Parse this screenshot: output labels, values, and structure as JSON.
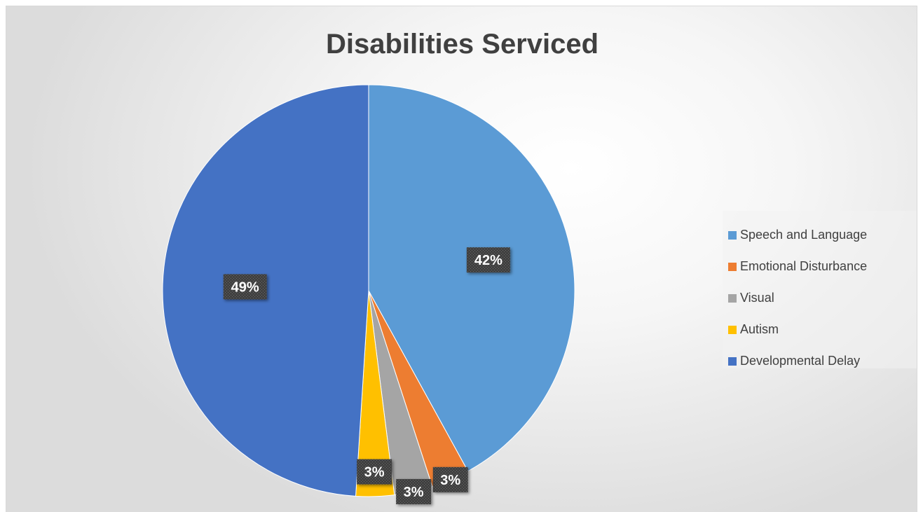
{
  "chart_data": {
    "type": "pie",
    "title": "Disabilities Serviced",
    "categories": [
      "Speech and Language",
      "Emotional Disturbance",
      "Visual",
      "Autism",
      "Developmental Delay"
    ],
    "values": [
      42,
      3,
      3,
      3,
      49
    ],
    "data_labels": [
      "42%",
      "3%",
      "3%",
      "3%",
      "49%"
    ],
    "colors": [
      "#5B9BD5",
      "#ED7D31",
      "#A5A5A5",
      "#FFC000",
      "#4472C4"
    ],
    "start_angle_deg": 0,
    "direction": "clockwise",
    "legend_position": "right"
  }
}
